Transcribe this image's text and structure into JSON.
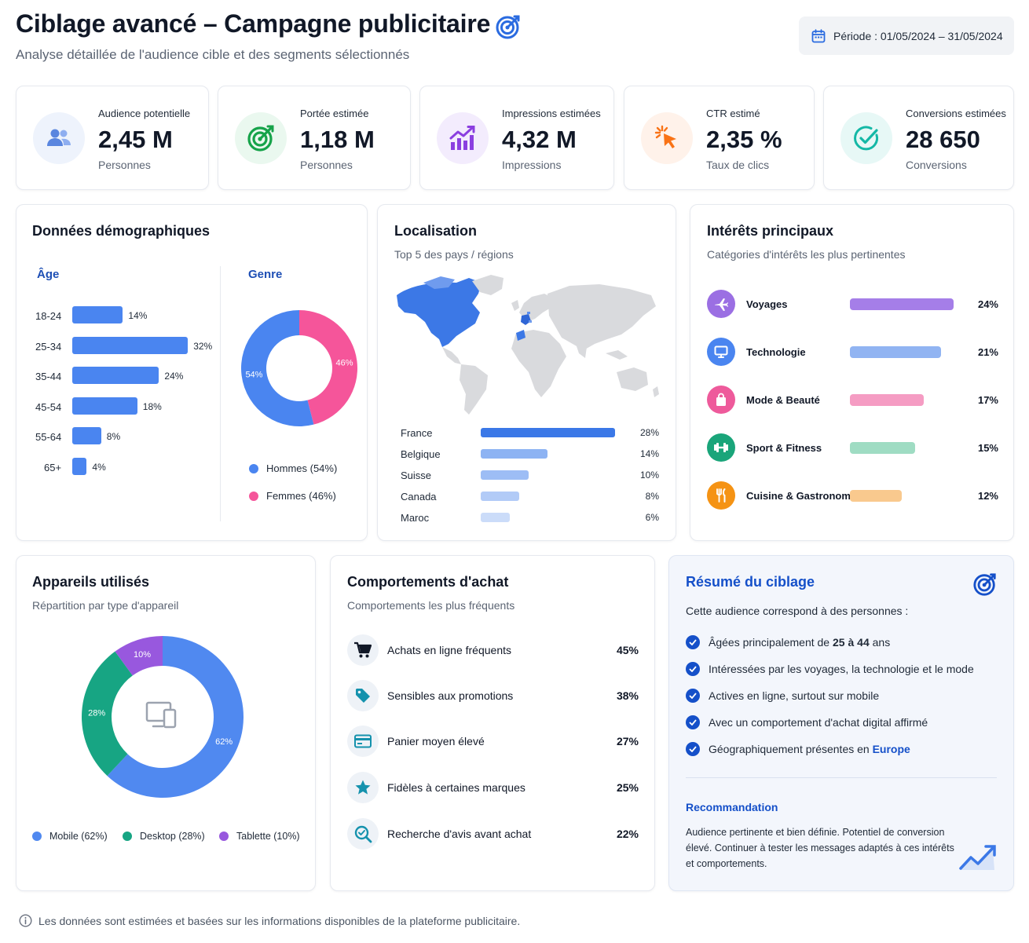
{
  "header": {
    "title": "Ciblage avancé – Campagne publicitaire",
    "subtitle": "Analyse détaillée de l'audience cible et des segments sélectionnés",
    "title_icon": "target-icon",
    "period": "Période : 01/05/2024 – 31/05/2024",
    "period_icon": "calendar-icon"
  },
  "kpis": [
    {
      "label": "Audience potentielle",
      "value": "2,45 M",
      "unit": "Personnes",
      "icon": "users-icon",
      "color": "#4a78d9",
      "bg": "#eef3fc"
    },
    {
      "label": "Portée estimée",
      "value": "1,18 M",
      "unit": "Personnes",
      "icon": "target-icon",
      "color": "#16a34a",
      "bg": "#eaf8ef"
    },
    {
      "label": "Impressions estimées",
      "value": "4,32 M",
      "unit": "Impressions",
      "icon": "trend-chart-icon",
      "color": "#8b3fe0",
      "bg": "#f3ecfd"
    },
    {
      "label": "CTR estimé",
      "value": "2,35 %",
      "unit": "Taux de clics",
      "icon": "cursor-click-icon",
      "color": "#f97316",
      "bg": "#fff2ea"
    },
    {
      "label": "Conversions estimées",
      "value": "28 650",
      "unit": "Conversions",
      "icon": "check-circle-icon",
      "color": "#14b8a6",
      "bg": "#e7f8f6"
    }
  ],
  "demographics": {
    "title": "Données démographiques",
    "age_title": "Âge",
    "gender_title": "Genre",
    "age": [
      {
        "label": "18-24",
        "value": 14,
        "text": "14%"
      },
      {
        "label": "25-34",
        "value": 32,
        "text": "32%"
      },
      {
        "label": "35-44",
        "value": 24,
        "text": "24%"
      },
      {
        "label": "45-54",
        "value": 18,
        "text": "18%"
      },
      {
        "label": "55-64",
        "value": 8,
        "text": "8%"
      },
      {
        "label": "65+",
        "value": 4,
        "text": "4%"
      }
    ],
    "gender": [
      {
        "label": "Hommes (54%)",
        "value": 54,
        "text": "54%",
        "color": "#4a85f0"
      },
      {
        "label": "Femmes (46%)",
        "value": 46,
        "text": "46%",
        "color": "#f5559a"
      }
    ]
  },
  "location": {
    "title": "Localisation",
    "subtitle": "Top 5 des pays / régions",
    "rows": [
      {
        "name": "France",
        "value": 28,
        "text": "28%",
        "color": "#3b78e7"
      },
      {
        "name": "Belgique",
        "value": 14,
        "text": "14%",
        "color": "#8db3f3"
      },
      {
        "name": "Suisse",
        "value": 10,
        "text": "10%",
        "color": "#9dbdf5"
      },
      {
        "name": "Canada",
        "value": 8,
        "text": "8%",
        "color": "#b2cbf7"
      },
      {
        "name": "Maroc",
        "value": 6,
        "text": "6%",
        "color": "#cbdcf9"
      }
    ]
  },
  "interests": {
    "title": "Intérêts principaux",
    "subtitle": "Catégories d'intérêts les plus pertinentes",
    "rows": [
      {
        "name": "Voyages",
        "value": 24,
        "text": "24%",
        "icon": "airplane-icon",
        "color": "#a57ee8",
        "icon_bg": "#9b6fe3"
      },
      {
        "name": "Technologie",
        "value": 21,
        "text": "21%",
        "icon": "monitor-icon",
        "color": "#91b4f2",
        "icon_bg": "#4a85f0"
      },
      {
        "name": "Mode & Beauté",
        "value": 17,
        "text": "17%",
        "icon": "shopping-bag-icon",
        "color": "#f59cc3",
        "icon_bg": "#ee5a9b"
      },
      {
        "name": "Sport & Fitness",
        "value": 15,
        "text": "15%",
        "icon": "dumbbell-icon",
        "color": "#9fdcc3",
        "icon_bg": "#1aa57a"
      },
      {
        "name": "Cuisine & Gastronomie",
        "value": 12,
        "text": "12%",
        "icon": "utensils-icon",
        "color": "#f9c98e",
        "icon_bg": "#f59314"
      }
    ]
  },
  "devices": {
    "title": "Appareils utilisés",
    "subtitle": "Répartition par type d'appareil",
    "center_icon": "devices-icon",
    "segments": [
      {
        "label": "Mobile (62%)",
        "value": 62,
        "text": "62%",
        "color": "#5089f0"
      },
      {
        "label": "Desktop (28%)",
        "value": 28,
        "text": "28%",
        "color": "#17a583"
      },
      {
        "label": "Tablette (10%)",
        "value": 10,
        "text": "10%",
        "color": "#9858de"
      }
    ]
  },
  "behaviors": {
    "title": "Comportements d'achat",
    "subtitle": "Comportements les plus fréquents",
    "rows": [
      {
        "name": "Achats en ligne fréquents",
        "text": "45%",
        "icon": "cart-icon"
      },
      {
        "name": "Sensibles aux promotions",
        "text": "38%",
        "icon": "tag-icon"
      },
      {
        "name": "Panier moyen élevé",
        "text": "27%",
        "icon": "credit-card-icon"
      },
      {
        "name": "Fidèles à certaines marques",
        "text": "25%",
        "icon": "star-icon"
      },
      {
        "name": "Recherche d'avis avant achat",
        "text": "22%",
        "icon": "search-review-icon"
      }
    ]
  },
  "summary": {
    "title": "Résumé du ciblage",
    "intro": "Cette audience correspond à des personnes :",
    "items": [
      [
        "Âgées principalement de ",
        "25",
        " à ",
        "44",
        " ans"
      ],
      [
        "Intéressées par les voyages, la technologie et le mode"
      ],
      [
        "Actives en ligne, surtout sur mobile"
      ],
      [
        "Avec un comportement d'achat digital affirmé"
      ],
      [
        "Géographiquement présentes en ",
        "Europe"
      ]
    ],
    "rec_title": "Recommandation",
    "rec_lines": [
      "Audience pertinente et bien définie. Potentiel de conversion",
      "élevé. Continuer à tester les messages adaptés à ces intérêts",
      "et comportements."
    ]
  },
  "footer": "Les données sont estimées et basées sur les informations disponibles de la plateforme publicitaire."
}
